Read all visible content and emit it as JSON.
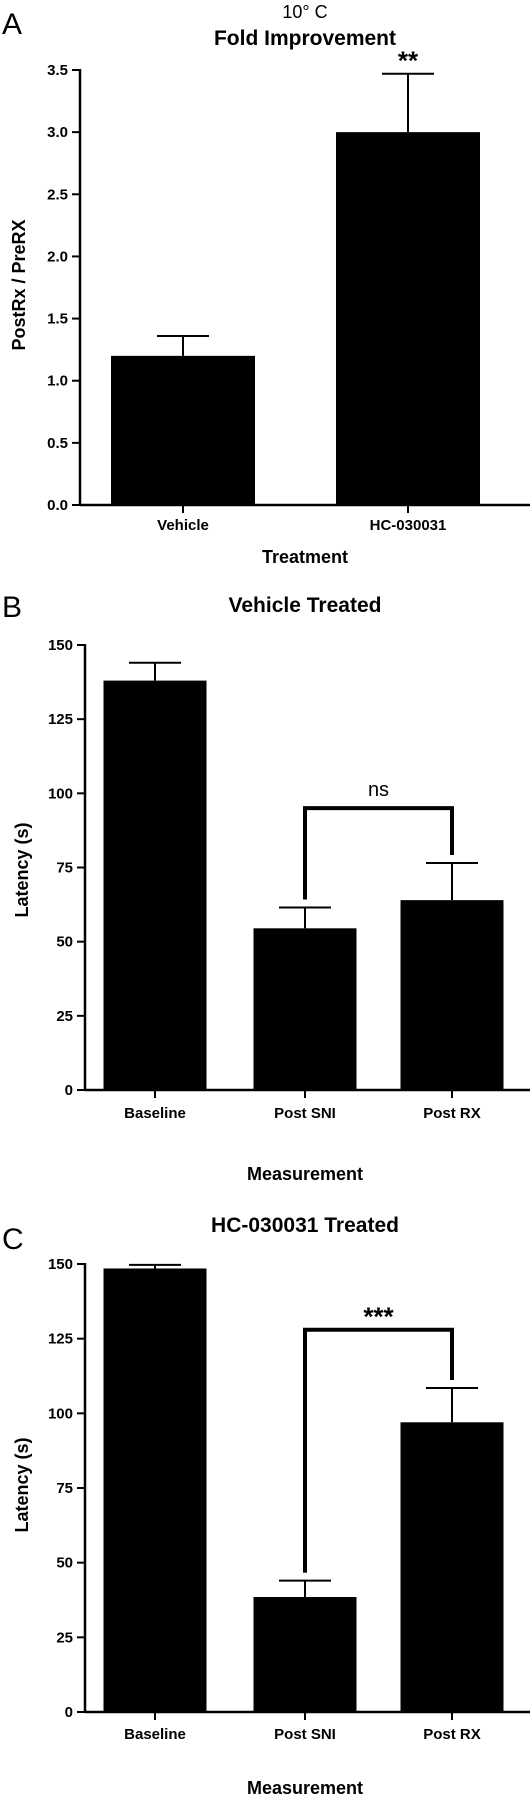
{
  "chart_data": [
    {
      "type": "bar",
      "panel": "A",
      "subtitle": "10° C",
      "title": "Fold Improvement",
      "xlabel": "Treatment",
      "ylabel": "PostRx / PreRX",
      "ylim": [
        0,
        3.5
      ],
      "yticks": [
        "0.0",
        "0.5",
        "1.0",
        "1.5",
        "2.0",
        "2.5",
        "3.0",
        "3.5"
      ],
      "categories": [
        "Vehicle",
        "HC-030031"
      ],
      "values": [
        1.2,
        3.0
      ],
      "errors": [
        0.16,
        0.47
      ],
      "annotations": [
        {
          "text": "**",
          "category_index": 1
        }
      ],
      "color": "#000000"
    },
    {
      "type": "bar",
      "panel": "B",
      "title": "Vehicle Treated",
      "xlabel": "Measurement",
      "ylabel": "Latency (s)",
      "ylim": [
        0,
        150
      ],
      "yticks": [
        "0",
        "25",
        "50",
        "75",
        "100",
        "125",
        "150"
      ],
      "categories": [
        "Baseline",
        "Post SNI",
        "Post RX"
      ],
      "values": [
        138,
        54.5,
        64
      ],
      "errors": [
        6,
        7,
        12.5
      ],
      "comparisons": [
        {
          "from": 1,
          "to": 2,
          "label": "ns",
          "level": 95
        }
      ],
      "color": "#000000"
    },
    {
      "type": "bar",
      "panel": "C",
      "title": "HC-030031 Treated",
      "xlabel": "Measurement",
      "ylabel": "Latency (s)",
      "ylim": [
        0,
        150
      ],
      "yticks": [
        "0",
        "25",
        "50",
        "75",
        "100",
        "125",
        "150"
      ],
      "categories": [
        "Baseline",
        "Post SNI",
        "Post RX"
      ],
      "values": [
        148.5,
        38.5,
        97
      ],
      "errors": [
        1.2,
        5.5,
        11.5
      ],
      "comparisons": [
        {
          "from": 1,
          "to": 2,
          "label": "***",
          "level": 128
        }
      ],
      "color": "#000000"
    }
  ]
}
